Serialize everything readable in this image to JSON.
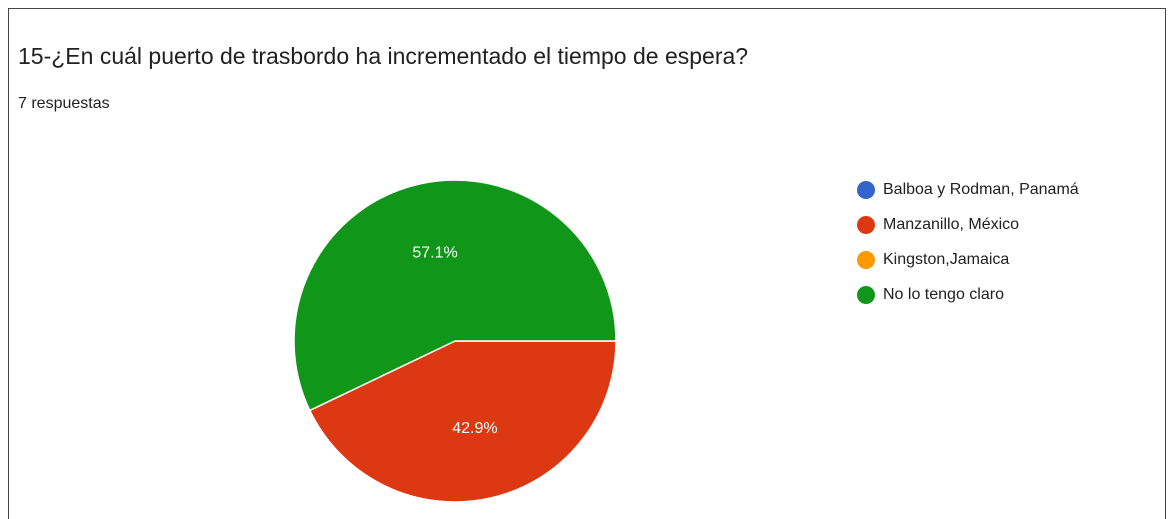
{
  "chart_data": {
    "type": "pie",
    "title": "15-¿En cuál puerto de trasbordo ha incrementado el tiempo de espera?",
    "subtitle": "7 respuestas",
    "categories": [
      "Balboa y Rodman, Panamá",
      "Manzanillo, México",
      "Kingston,Jamaica",
      "No lo tengo claro"
    ],
    "values": [
      0,
      42.9,
      0,
      57.1
    ],
    "value_labels": [
      null,
      "42.9%",
      null,
      "57.1%"
    ],
    "colors": [
      "#3366cc",
      "#dc3912",
      "#ff9900",
      "#109618"
    ],
    "legend": "right"
  }
}
